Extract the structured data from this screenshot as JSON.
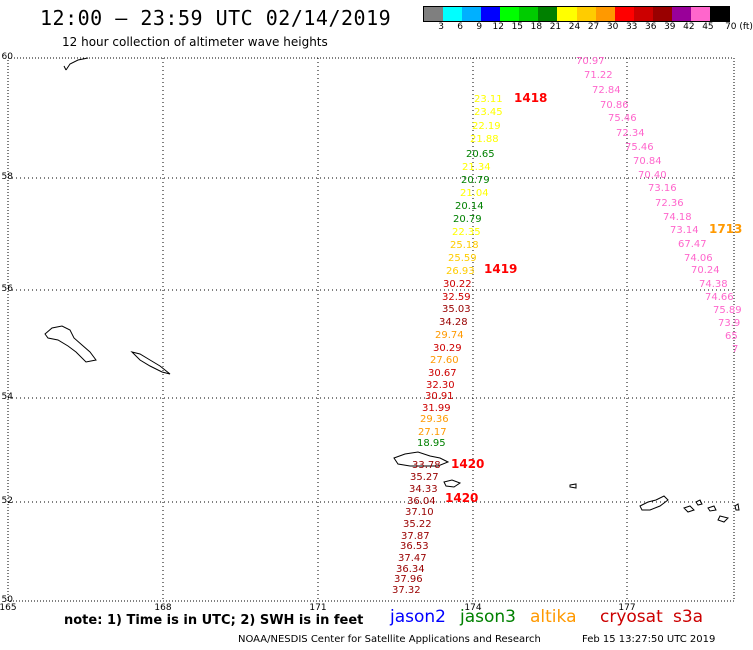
{
  "header": {
    "title": "12:00 – 23:59 UTC 02/14/2019",
    "subtitle": "12 hour collection of altimeter wave heights"
  },
  "legend": {
    "colors": [
      "#7f7f7f",
      "#00ffff",
      "#00b0ff",
      "#0000ff",
      "#00ff00",
      "#00cc00",
      "#008000",
      "#ffff00",
      "#ffcc00",
      "#ff9900",
      "#ff0000",
      "#cc0000",
      "#990000",
      "#990099",
      "#ff66cc",
      "#000000"
    ],
    "tick_labels": [
      "3",
      "6",
      "9",
      "12",
      "15",
      "18",
      "21",
      "24",
      "27",
      "30",
      "33",
      "36",
      "39",
      "42",
      "45",
      "70 (ft)"
    ]
  },
  "map": {
    "lon_labels": [
      "165",
      "168",
      "171",
      "174",
      "177"
    ],
    "lat_labels": [
      "60",
      "58",
      "56",
      "54",
      "52",
      "50"
    ],
    "passes": [
      {
        "label": "1418",
        "color": "#ff0000"
      },
      {
        "label": "1419",
        "color": "#ff0000"
      },
      {
        "label": "1420",
        "color": "#ff0000"
      },
      {
        "label": "1420",
        "color": "#ff0000"
      },
      {
        "label": "1713",
        "color": "#ff9900"
      }
    ],
    "track_a": [
      {
        "v": "23.11",
        "c": "#ffff00"
      },
      {
        "v": "23.45",
        "c": "#ffff00"
      },
      {
        "v": "22.19",
        "c": "#ffff00"
      },
      {
        "v": "21.88",
        "c": "#ffff00"
      },
      {
        "v": "20.65",
        "c": "#008000"
      },
      {
        "v": "21.34",
        "c": "#ffff00"
      },
      {
        "v": "20.79",
        "c": "#008000"
      },
      {
        "v": "21.04",
        "c": "#ffff00"
      },
      {
        "v": "20.14",
        "c": "#008000"
      },
      {
        "v": "20.79",
        "c": "#008000"
      },
      {
        "v": "22.35",
        "c": "#ffff00"
      },
      {
        "v": "25.18",
        "c": "#ffcc00"
      },
      {
        "v": "25.59",
        "c": "#ffcc00"
      },
      {
        "v": "26.93",
        "c": "#ffcc00"
      },
      {
        "v": "30.22",
        "c": "#cc0000"
      },
      {
        "v": "32.59",
        "c": "#cc0000"
      },
      {
        "v": "35.03",
        "c": "#990000"
      },
      {
        "v": "34.28",
        "c": "#990000"
      },
      {
        "v": "29.74",
        "c": "#ff9900"
      },
      {
        "v": "30.29",
        "c": "#cc0000"
      },
      {
        "v": "27.60",
        "c": "#ff9900"
      },
      {
        "v": "30.67",
        "c": "#cc0000"
      },
      {
        "v": "32.30",
        "c": "#cc0000"
      },
      {
        "v": "30.91",
        "c": "#cc0000"
      },
      {
        "v": "31.99",
        "c": "#cc0000"
      },
      {
        "v": "29.36",
        "c": "#ff9900"
      },
      {
        "v": "27.17",
        "c": "#ff9900"
      },
      {
        "v": "18.95",
        "c": "#008000"
      },
      {
        "v": "33.78",
        "c": "#990000"
      },
      {
        "v": "35.27",
        "c": "#990000"
      },
      {
        "v": "34.33",
        "c": "#990000"
      },
      {
        "v": "36.04",
        "c": "#990000"
      },
      {
        "v": "37.10",
        "c": "#990000"
      },
      {
        "v": "35.22",
        "c": "#990000"
      },
      {
        "v": "37.87",
        "c": "#990000"
      },
      {
        "v": "36.53",
        "c": "#990000"
      },
      {
        "v": "37.47",
        "c": "#990000"
      },
      {
        "v": "36.34",
        "c": "#990000"
      },
      {
        "v": "37.96",
        "c": "#990000"
      },
      {
        "v": "37.32",
        "c": "#990000"
      }
    ],
    "track_b": [
      {
        "v": "70.97",
        "c": "#ff66cc"
      },
      {
        "v": "71.22",
        "c": "#ff66cc"
      },
      {
        "v": "72.84",
        "c": "#ff66cc"
      },
      {
        "v": "70.86",
        "c": "#ff66cc"
      },
      {
        "v": "75.46",
        "c": "#ff66cc"
      },
      {
        "v": "72.34",
        "c": "#ff66cc"
      },
      {
        "v": "75.46",
        "c": "#ff66cc"
      },
      {
        "v": "70.84",
        "c": "#ff66cc"
      },
      {
        "v": "70.40",
        "c": "#ff66cc"
      },
      {
        "v": "73.16",
        "c": "#ff66cc"
      },
      {
        "v": "72.36",
        "c": "#ff66cc"
      },
      {
        "v": "74.18",
        "c": "#ff66cc"
      },
      {
        "v": "73.14",
        "c": "#ff66cc"
      },
      {
        "v": "67.47",
        "c": "#ff66cc"
      },
      {
        "v": "74.06",
        "c": "#ff66cc"
      },
      {
        "v": "70.24",
        "c": "#ff66cc"
      },
      {
        "v": "74.38",
        "c": "#ff66cc"
      },
      {
        "v": "74.66",
        "c": "#ff66cc"
      },
      {
        "v": "75.89",
        "c": "#ff66cc"
      },
      {
        "v": "73.9",
        "c": "#ff66cc"
      },
      {
        "v": "65",
        "c": "#ff66cc"
      },
      {
        "v": "7",
        "c": "#ff66cc"
      }
    ]
  },
  "footer": {
    "note": "note: 1) Time is in UTC; 2) SWH is in feet",
    "satellites": [
      {
        "name": "jason2",
        "color": "#0000ff"
      },
      {
        "name": "jason3",
        "color": "#008000"
      },
      {
        "name": "altika",
        "color": "#ff9900"
      },
      {
        "name": "cryosat",
        "color": "#cc0000"
      },
      {
        "name": "s3a",
        "color": "#cc0000"
      }
    ],
    "credit": "NOAA/NESDIS Center for Satellite Applications and Research",
    "timestamp": "Feb 15 13:27:50 UTC 2019"
  }
}
